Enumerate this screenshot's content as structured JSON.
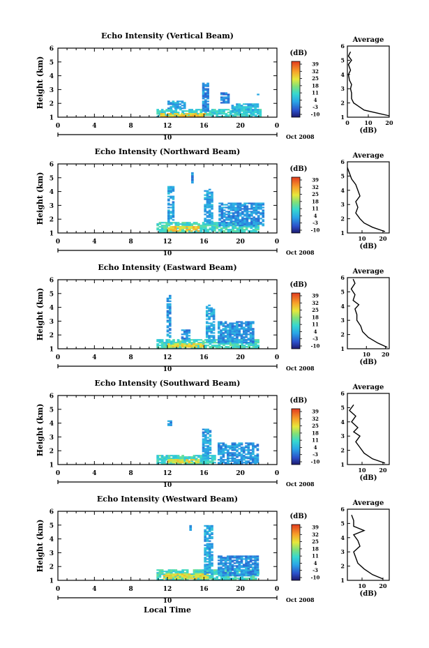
{
  "figure": {
    "xlabel": "Local Time",
    "date_label": "Oct 2008",
    "day_label": "10",
    "colorbar_unit": "(dB)",
    "average_title": "Average",
    "average_xlabel": "(dB)",
    "ylabel": "Height (km)"
  },
  "chart_data": [
    {
      "type": "heatmap",
      "title": "Echo Intensity (Vertical Beam)",
      "ylabel": "Height (km)",
      "xlim": [
        0,
        24
      ],
      "ylim": [
        1,
        6
      ],
      "xticks": [
        "0",
        "4",
        "8",
        "12",
        "16",
        "20",
        "0"
      ],
      "yticks": [
        "1",
        "2",
        "3",
        "4",
        "5",
        "6"
      ],
      "colorbar_ticks": [
        "-10",
        "-3",
        "4",
        "11",
        "18",
        "25",
        "32",
        "39"
      ],
      "colorbar_range": [
        -10,
        45
      ],
      "average_xticks": [
        "0",
        "10",
        "20"
      ],
      "average_xlim": [
        0,
        20
      ],
      "echo_regions": [
        {
          "t0": 10.8,
          "t1": 22.2,
          "h0": 1.0,
          "h1": 1.6,
          "level": 12
        },
        {
          "t0": 11.2,
          "t1": 16.0,
          "h0": 1.0,
          "h1": 1.3,
          "level": 30
        },
        {
          "t0": 12.0,
          "t1": 14.0,
          "h0": 1.6,
          "h1": 2.2,
          "level": 6
        },
        {
          "t0": 15.8,
          "t1": 16.4,
          "h0": 1.4,
          "h1": 3.5,
          "level": 3
        },
        {
          "t0": 17.8,
          "t1": 18.6,
          "h0": 2.0,
          "h1": 2.8,
          "level": 2
        },
        {
          "t0": 19.0,
          "t1": 22.0,
          "h0": 1.3,
          "h1": 2.0,
          "level": 8
        },
        {
          "t0": 21.8,
          "t1": 22.0,
          "h0": 2.6,
          "h1": 2.8,
          "level": 2
        }
      ],
      "average_profile": {
        "height": [
          1.1,
          1.3,
          1.5,
          1.8,
          2.0,
          2.3,
          2.7,
          3.0,
          3.3,
          3.6,
          4.0,
          4.3,
          4.7,
          5.0,
          5.3,
          5.6
        ],
        "value": [
          20,
          14,
          8,
          5,
          3,
          2,
          2,
          1.5,
          2,
          1,
          0.5,
          1.5,
          0.5,
          2,
          0.5,
          1.5
        ]
      }
    },
    {
      "type": "heatmap",
      "title": "Echo Intensity (Northward Beam)",
      "ylabel": "Height (km)",
      "xlim": [
        0,
        24
      ],
      "ylim": [
        1,
        6
      ],
      "xticks": [
        "0",
        "4",
        "8",
        "12",
        "16",
        "20",
        "0"
      ],
      "yticks": [
        "1",
        "2",
        "3",
        "4",
        "5",
        "6"
      ],
      "colorbar_ticks": [
        "-10",
        "-3",
        "4",
        "11",
        "18",
        "25",
        "32",
        "39"
      ],
      "colorbar_range": [
        -10,
        45
      ],
      "average_xticks": [
        "10",
        "20"
      ],
      "average_xlim": [
        3,
        23
      ],
      "echo_regions": [
        {
          "t0": 10.8,
          "t1": 22.0,
          "h0": 1.0,
          "h1": 1.8,
          "level": 14
        },
        {
          "t0": 12.0,
          "t1": 15.5,
          "h0": 1.1,
          "h1": 1.5,
          "level": 30
        },
        {
          "t0": 12.0,
          "t1": 12.6,
          "h0": 1.8,
          "h1": 4.4,
          "level": 5
        },
        {
          "t0": 14.6,
          "t1": 14.8,
          "h0": 4.5,
          "h1": 5.3,
          "level": 4
        },
        {
          "t0": 16.0,
          "t1": 16.8,
          "h0": 1.6,
          "h1": 4.2,
          "level": 6
        },
        {
          "t0": 17.6,
          "t1": 22.5,
          "h0": 1.5,
          "h1": 3.2,
          "level": 4
        }
      ],
      "average_profile": {
        "height": [
          1.1,
          1.4,
          1.7,
          2.0,
          2.4,
          2.8,
          3.2,
          3.6,
          4.0,
          4.4,
          4.8,
          5.2,
          5.6
        ],
        "value": [
          21,
          15,
          11,
          9,
          7,
          8,
          7,
          9,
          8,
          7,
          5,
          4,
          3
        ]
      }
    },
    {
      "type": "heatmap",
      "title": "Echo Intensity (Eastward Beam)",
      "ylabel": "Height (km)",
      "xlim": [
        0,
        24
      ],
      "ylim": [
        1,
        6
      ],
      "xticks": [
        "0",
        "4",
        "8",
        "12",
        "16",
        "20",
        "0"
      ],
      "yticks": [
        "1",
        "2",
        "3",
        "4",
        "5",
        "6"
      ],
      "colorbar_ticks": [
        "-10",
        "-3",
        "4",
        "11",
        "18",
        "25",
        "32",
        "39"
      ],
      "colorbar_range": [
        -10,
        45
      ],
      "average_xticks": [
        "10",
        "20"
      ],
      "average_xlim": [
        0,
        22
      ],
      "echo_regions": [
        {
          "t0": 10.8,
          "t1": 22.0,
          "h0": 1.0,
          "h1": 1.7,
          "level": 14
        },
        {
          "t0": 12.0,
          "t1": 16.0,
          "h0": 1.1,
          "h1": 1.4,
          "level": 28
        },
        {
          "t0": 11.9,
          "t1": 12.4,
          "h0": 1.8,
          "h1": 4.8,
          "level": 5
        },
        {
          "t0": 13.5,
          "t1": 14.5,
          "h0": 1.6,
          "h1": 2.4,
          "level": 3
        },
        {
          "t0": 16.2,
          "t1": 17.0,
          "h0": 1.5,
          "h1": 4.2,
          "level": 6
        },
        {
          "t0": 17.5,
          "t1": 21.5,
          "h0": 1.4,
          "h1": 3.0,
          "level": 4
        }
      ],
      "average_profile": {
        "height": [
          1.1,
          1.4,
          1.8,
          2.2,
          2.6,
          3.0,
          3.4,
          3.8,
          4.1,
          4.4,
          4.8,
          5.2,
          5.6,
          5.9
        ],
        "value": [
          21,
          16,
          11,
          8,
          7,
          5,
          5,
          4,
          6,
          3,
          4,
          2,
          4,
          3
        ]
      }
    },
    {
      "type": "heatmap",
      "title": "Echo Intensity (Southward Beam)",
      "ylabel": "Height (km)",
      "xlim": [
        0,
        24
      ],
      "ylim": [
        1,
        6
      ],
      "xticks": [
        "0",
        "4",
        "8",
        "12",
        "16",
        "20",
        "0"
      ],
      "yticks": [
        "1",
        "2",
        "3",
        "4",
        "5",
        "6"
      ],
      "colorbar_ticks": [
        "-10",
        "-3",
        "4",
        "11",
        "18",
        "25",
        "32",
        "39"
      ],
      "colorbar_range": [
        -10,
        45
      ],
      "average_xticks": [
        "10",
        "20"
      ],
      "average_xlim": [
        3,
        23
      ],
      "echo_regions": [
        {
          "t0": 10.8,
          "t1": 17.2,
          "h0": 1.0,
          "h1": 1.7,
          "level": 14
        },
        {
          "t0": 12.0,
          "t1": 15.5,
          "h0": 1.1,
          "h1": 1.4,
          "level": 28
        },
        {
          "t0": 12.0,
          "t1": 12.3,
          "h0": 3.8,
          "h1": 4.2,
          "level": 3
        },
        {
          "t0": 15.8,
          "t1": 16.8,
          "h0": 1.4,
          "h1": 3.6,
          "level": 5
        },
        {
          "t0": 17.5,
          "t1": 21.8,
          "h0": 1.0,
          "h1": 2.6,
          "level": 4
        }
      ],
      "average_profile": {
        "height": [
          1.1,
          1.4,
          1.8,
          2.2,
          2.6,
          3.0,
          3.3,
          3.6,
          4.0,
          4.4,
          4.8,
          5.2
        ],
        "value": [
          21,
          15,
          11,
          9,
          7,
          9,
          6,
          8,
          5,
          7,
          4,
          6
        ]
      }
    },
    {
      "type": "heatmap",
      "title": "Echo Intensity (Westward Beam)",
      "ylabel": "Height (km)",
      "xlim": [
        0,
        24
      ],
      "ylim": [
        1,
        6
      ],
      "xticks": [
        "0",
        "4",
        "8",
        "12",
        "16",
        "20",
        "0"
      ],
      "yticks": [
        "1",
        "2",
        "3",
        "4",
        "5",
        "6"
      ],
      "colorbar_ticks": [
        "-10",
        "-3",
        "4",
        "11",
        "18",
        "25",
        "32",
        "39"
      ],
      "colorbar_range": [
        -10,
        45
      ],
      "average_xticks": [
        "10",
        "20"
      ],
      "average_xlim": [
        3,
        23
      ],
      "echo_regions": [
        {
          "t0": 10.8,
          "t1": 22.0,
          "h0": 1.0,
          "h1": 1.8,
          "level": 14
        },
        {
          "t0": 11.5,
          "t1": 16.5,
          "h0": 1.1,
          "h1": 1.5,
          "level": 28
        },
        {
          "t0": 14.4,
          "t1": 14.6,
          "h0": 4.6,
          "h1": 5.0,
          "level": 4
        },
        {
          "t0": 16.0,
          "t1": 17.0,
          "h0": 1.4,
          "h1": 4.9,
          "level": 6
        },
        {
          "t0": 17.5,
          "t1": 22.0,
          "h0": 1.3,
          "h1": 2.8,
          "level": 4
        }
      ],
      "average_profile": {
        "height": [
          1.1,
          1.4,
          1.8,
          2.2,
          2.6,
          3.0,
          3.4,
          3.8,
          4.2,
          4.5,
          4.8,
          5.2,
          5.6
        ],
        "value": [
          20,
          15,
          11,
          8,
          7,
          6,
          9,
          8,
          6,
          11,
          6,
          6,
          5
        ]
      }
    }
  ]
}
